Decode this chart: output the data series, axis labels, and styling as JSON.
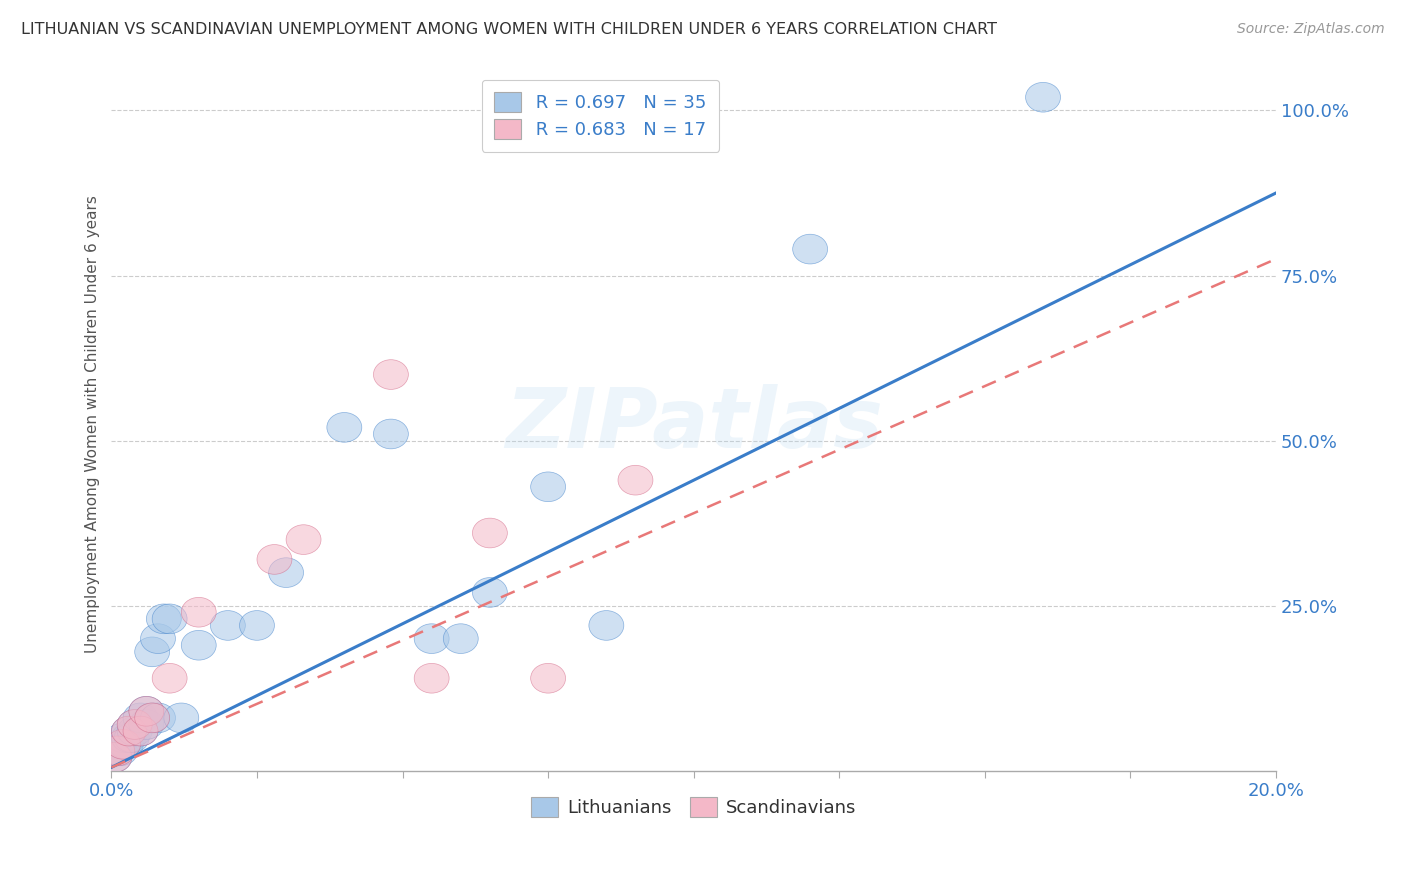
{
  "title": "LITHUANIAN VS SCANDINAVIAN UNEMPLOYMENT AMONG WOMEN WITH CHILDREN UNDER 6 YEARS CORRELATION CHART",
  "source": "Source: ZipAtlas.com",
  "ylabel": "Unemployment Among Women with Children Under 6 years",
  "ytick_labels": [
    "25.0%",
    "50.0%",
    "75.0%",
    "100.0%"
  ],
  "ytick_values": [
    0.25,
    0.5,
    0.75,
    1.0
  ],
  "xlim": [
    0,
    0.2
  ],
  "ylim": [
    0,
    1.05
  ],
  "blue_color": "#a8c8e8",
  "pink_color": "#f4b8c8",
  "blue_line_color": "#3a7dc9",
  "pink_line_color": "#e87878",
  "axis_label_color": "#3a7dc9",
  "watermark": "ZIPatlas",
  "lit_slope": 4.35,
  "lit_intercept": 0.005,
  "sca_slope": 3.85,
  "sca_intercept": 0.005,
  "lithuanians_x": [
    0.0005,
    0.001,
    0.0015,
    0.002,
    0.002,
    0.0025,
    0.003,
    0.003,
    0.0035,
    0.004,
    0.004,
    0.005,
    0.005,
    0.006,
    0.006,
    0.007,
    0.007,
    0.008,
    0.008,
    0.009,
    0.01,
    0.012,
    0.015,
    0.02,
    0.025,
    0.03,
    0.04,
    0.048,
    0.055,
    0.06,
    0.065,
    0.075,
    0.085,
    0.12,
    0.16
  ],
  "lithuanians_y": [
    0.02,
    0.03,
    0.03,
    0.04,
    0.05,
    0.04,
    0.05,
    0.06,
    0.05,
    0.06,
    0.07,
    0.06,
    0.08,
    0.07,
    0.09,
    0.08,
    0.18,
    0.08,
    0.2,
    0.23,
    0.23,
    0.08,
    0.19,
    0.22,
    0.22,
    0.3,
    0.52,
    0.51,
    0.2,
    0.2,
    0.27,
    0.43,
    0.22,
    0.79,
    1.02
  ],
  "scandinavians_x": [
    0.0005,
    0.001,
    0.002,
    0.003,
    0.004,
    0.005,
    0.006,
    0.007,
    0.01,
    0.015,
    0.028,
    0.033,
    0.048,
    0.055,
    0.065,
    0.075,
    0.09
  ],
  "scandinavians_y": [
    0.02,
    0.03,
    0.04,
    0.06,
    0.07,
    0.06,
    0.09,
    0.08,
    0.14,
    0.24,
    0.32,
    0.35,
    0.6,
    0.14,
    0.36,
    0.14,
    0.44
  ]
}
